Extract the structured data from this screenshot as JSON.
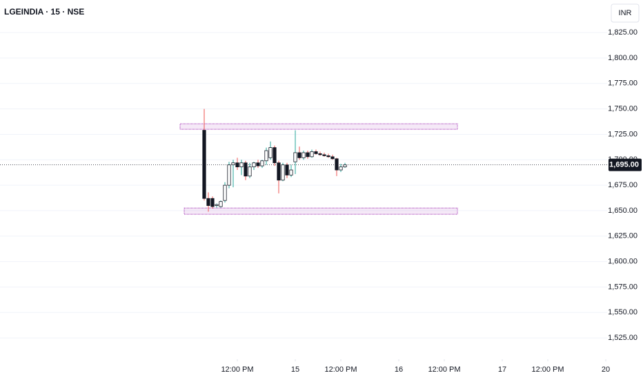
{
  "chart_data": {
    "type": "candlestick",
    "title": "LGEINDIA · 15 · NSE",
    "currency": "INR",
    "x": [
      0,
      1,
      2,
      3,
      4,
      5,
      6,
      7,
      8,
      9,
      10,
      11,
      12,
      13,
      14,
      15,
      16,
      17,
      18,
      19,
      20,
      21,
      22,
      23,
      24,
      25,
      26,
      27,
      28,
      29,
      30,
      31,
      32,
      33,
      34
    ],
    "open": [
      1729,
      1662,
      1662,
      1655,
      1654,
      1660,
      1675,
      1695,
      1697,
      1693,
      1697,
      1684,
      1693,
      1697,
      1694,
      1699,
      1702,
      1712,
      1697,
      1680,
      1695,
      1685,
      1698,
      1707,
      1702,
      1707,
      1703,
      1708,
      1706,
      1705,
      1704,
      1703,
      1701,
      1690,
      1693
    ],
    "high": [
      1750,
      1668,
      1664,
      1657,
      1660,
      1678,
      1698,
      1700,
      1702,
      1700,
      1699,
      1697,
      1698,
      1700,
      1700,
      1712,
      1718,
      1714,
      1699,
      1697,
      1697,
      1695,
      1729,
      1713,
      1709,
      1709,
      1710,
      1710,
      1708,
      1707,
      1706,
      1705,
      1702,
      1696,
      1697
    ],
    "low": [
      1660,
      1649,
      1652,
      1653,
      1653,
      1658,
      1672,
      1673,
      1690,
      1685,
      1680,
      1682,
      1690,
      1692,
      1692,
      1695,
      1700,
      1694,
      1667,
      1679,
      1682,
      1683,
      1686,
      1700,
      1700,
      1701,
      1702,
      1705,
      1704,
      1703,
      1702,
      1700,
      1684,
      1688,
      1692
    ],
    "close": [
      1662,
      1655,
      1654,
      1656,
      1659,
      1675,
      1695,
      1697,
      1693,
      1697,
      1684,
      1693,
      1697,
      1694,
      1699,
      1709,
      1712,
      1697,
      1680,
      1695,
      1685,
      1690,
      1707,
      1702,
      1707,
      1703,
      1708,
      1706,
      1705,
      1704,
      1703,
      1701,
      1690,
      1693,
      1695
    ],
    "up_color": "#ffffff",
    "down_color": "#131722",
    "up_wick_color": "#26a69a",
    "down_wick_color": "#ef5350",
    "zones": [
      {
        "x0": -5.83,
        "x1": 61.17,
        "y0": 1730,
        "y1": 1735.4,
        "color": "#9c27b0"
      },
      {
        "x0": -4.83,
        "x1": 61.17,
        "y0": 1646.5,
        "y1": 1652.6,
        "color": "#9c27b0"
      }
    ],
    "last_price": {
      "value": 1695,
      "label": "1,695.00"
    },
    "xlim": [
      -49.33,
      97.33
    ],
    "xticks": [
      {
        "value": 8,
        "label": "12:00 PM"
      },
      {
        "value": 22,
        "label": "15"
      },
      {
        "value": 33,
        "label": "12:00 PM"
      },
      {
        "value": 47,
        "label": "16"
      },
      {
        "value": 58,
        "label": "12:00 PM"
      },
      {
        "value": 72,
        "label": "17"
      },
      {
        "value": 83,
        "label": "12:00 PM"
      },
      {
        "value": 97,
        "label": "20"
      }
    ],
    "ylim": [
      1504,
      1857
    ],
    "yticks": [
      {
        "value": 1525,
        "label": "1,525.00"
      },
      {
        "value": 1550,
        "label": "1,550.00"
      },
      {
        "value": 1575,
        "label": "1,575.00"
      },
      {
        "value": 1600,
        "label": "1,600.00"
      },
      {
        "value": 1625,
        "label": "1,625.00"
      },
      {
        "value": 1650,
        "label": "1,650.00"
      },
      {
        "value": 1675,
        "label": "1,675.00"
      },
      {
        "value": 1700,
        "label": "1,700.00"
      },
      {
        "value": 1725,
        "label": "1,725.00"
      },
      {
        "value": 1750,
        "label": "1,750.00"
      },
      {
        "value": 1775,
        "label": "1,775.00"
      },
      {
        "value": 1800,
        "label": "1,800.00"
      },
      {
        "value": 1825,
        "label": "1,825.00"
      }
    ],
    "grid": true
  }
}
